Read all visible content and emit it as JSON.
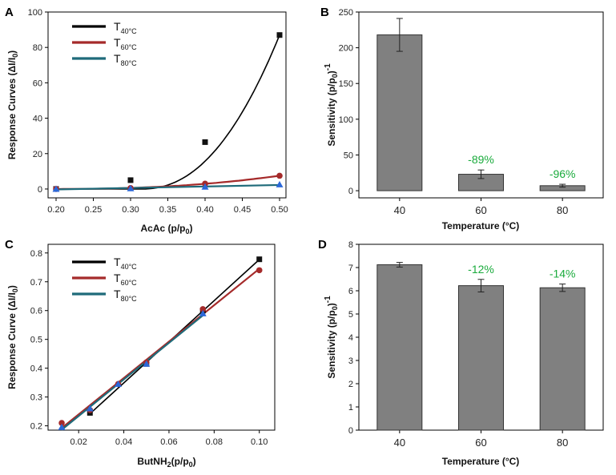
{
  "chart_data": [
    {
      "panel": "A",
      "type": "scatter",
      "xlabel": "AcAc (p/p",
      "xlabel_sub": "0",
      "xlabel_end": ")",
      "ylabel": "Response Curves (ΔI/I",
      "ylabel_sub": "0",
      "ylabel_end": ")",
      "xlim": [
        0.2,
        0.5
      ],
      "ylim": [
        -5,
        100
      ],
      "xticks": [
        0.2,
        0.25,
        0.3,
        0.35,
        0.4,
        0.45,
        0.5
      ],
      "xtick_labels": [
        "0.20",
        "0.25",
        "0.30",
        "0.35",
        "0.40",
        "0.45",
        "0.50"
      ],
      "yticks": [
        0,
        20,
        40,
        60,
        80,
        100
      ],
      "ytick_labels": [
        "0",
        "20",
        "40",
        "60",
        "80",
        "100"
      ],
      "series": [
        {
          "name": "T",
          "sub": "40°C",
          "color": "#000000",
          "marker": "square",
          "x": [
            0.2,
            0.3,
            0.4,
            0.5
          ],
          "y": [
            0,
            5,
            26.5,
            87
          ],
          "fit": "cubic"
        },
        {
          "name": "T",
          "sub": "60°C",
          "color": "#a52a2a",
          "marker": "circle",
          "x": [
            0.2,
            0.3,
            0.4,
            0.5
          ],
          "y": [
            0,
            0.5,
            3,
            7.5
          ],
          "fit": "smooth"
        },
        {
          "name": "T",
          "sub": "80°C",
          "color": "#1f6b7a",
          "marker": "triangle",
          "x": [
            0.2,
            0.3,
            0.4,
            0.5
          ],
          "y": [
            0,
            0.3,
            1.2,
            2.5
          ],
          "fit": "line"
        }
      ]
    },
    {
      "panel": "B",
      "type": "bar",
      "xlabel": "Temperature (°C)",
      "ylabel": "Sensitivity (p/p",
      "ylabel_sub": "0",
      "ylabel_end": ")",
      "ylabel_sup": "-1",
      "categories": [
        "40",
        "60",
        "80"
      ],
      "values": [
        218,
        23,
        7
      ],
      "errors": [
        23,
        6,
        2
      ],
      "annotations": [
        "",
        "-89%",
        "-96%"
      ],
      "ylim": [
        -10,
        250
      ],
      "yticks": [
        0,
        50,
        100,
        150,
        200,
        250
      ],
      "ytick_labels": [
        "0",
        "50",
        "100",
        "150",
        "200",
        "250"
      ]
    },
    {
      "panel": "C",
      "type": "scatter",
      "xlabel": "ButNH",
      "xlabel_sub": "2",
      "xlabel_end": "(p/p",
      "xlabel_sub2": "0",
      "xlabel_end2": ")",
      "ylabel": "Response Curve (ΔI/I",
      "ylabel_sub": "0",
      "ylabel_end": ")",
      "xlim": [
        0.01,
        0.104
      ],
      "ylim": [
        0.185,
        0.83
      ],
      "xticks": [
        0.02,
        0.04,
        0.06,
        0.08,
        0.1
      ],
      "xtick_labels": [
        "0.02",
        "0.04",
        "0.06",
        "0.08",
        "0.10"
      ],
      "yticks": [
        0.2,
        0.3,
        0.4,
        0.5,
        0.6,
        0.7,
        0.8
      ],
      "ytick_labels": [
        "0.2",
        "0.3",
        "0.4",
        "0.5",
        "0.6",
        "0.7",
        "0.8"
      ],
      "series": [
        {
          "name": "T",
          "sub": "40°C",
          "color": "#000000",
          "marker": "square",
          "x": [
            0.025,
            0.05,
            0.075,
            0.1
          ],
          "y": [
            0.245,
            0.415,
            0.6,
            0.778
          ],
          "fit": "line"
        },
        {
          "name": "T",
          "sub": "60°C",
          "color": "#a52a2a",
          "marker": "circle",
          "x": [
            0.0125,
            0.025,
            0.0375,
            0.05,
            0.075,
            0.1
          ],
          "y": [
            0.21,
            0.255,
            0.345,
            0.42,
            0.605,
            0.74
          ],
          "fit": "line"
        },
        {
          "name": "T",
          "sub": "80°C",
          "color": "#1f6b7a",
          "marker": "triangle",
          "x": [
            0.0125,
            0.025,
            0.0375,
            0.05,
            0.075
          ],
          "y": [
            0.195,
            0.26,
            0.345,
            0.415,
            0.59
          ],
          "fit": "line"
        }
      ]
    },
    {
      "panel": "D",
      "type": "bar",
      "xlabel": "Temperature (°C)",
      "ylabel": "Sensitivity (p/p",
      "ylabel_sub": "0",
      "ylabel_end": ")",
      "ylabel_sup": "-1",
      "categories": [
        "40",
        "60",
        "80"
      ],
      "values": [
        7.12,
        6.22,
        6.13
      ],
      "errors": [
        0.1,
        0.27,
        0.16
      ],
      "annotations": [
        "",
        "-12%",
        "-14%"
      ],
      "ylim": [
        0,
        8
      ],
      "yticks": [
        0,
        1,
        2,
        3,
        4,
        5,
        6,
        7,
        8
      ],
      "ytick_labels": [
        "0",
        "1",
        "2",
        "3",
        "4",
        "5",
        "6",
        "7",
        "8"
      ]
    }
  ],
  "colors": {
    "bar_fill": "#808080",
    "bar_stroke": "#333333",
    "annotation": "#1aab3c"
  }
}
